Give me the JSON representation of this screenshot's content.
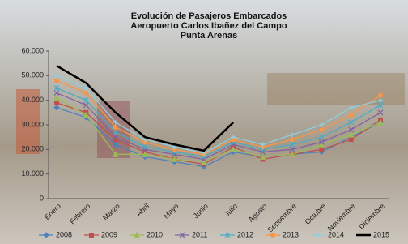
{
  "chart_data": {
    "type": "line",
    "title_lines": [
      "Evolución de Pasajeros Embarcados",
      "Aeropuerto Carlos Ibañez del Campo",
      "Punta Arenas"
    ],
    "categories": [
      "Enero",
      "Febrero",
      "Marzo",
      "Abril",
      "Mayo",
      "Junio",
      "Julio",
      "Agosto",
      "Septiembre",
      "Octubre",
      "Noviembre",
      "Diciembre"
    ],
    "series": [
      {
        "name": "2008",
        "color": "#4f81bd",
        "marker": "diamond",
        "values": [
          37000,
          33000,
          22000,
          17000,
          15000,
          13000,
          19000,
          17000,
          18000,
          19000,
          25000,
          31000
        ]
      },
      {
        "name": "2009",
        "color": "#c0504d",
        "marker": "square",
        "values": [
          39000,
          35000,
          24000,
          19000,
          16000,
          14000,
          21000,
          16000,
          18000,
          20000,
          24000,
          32000
        ]
      },
      {
        "name": "2010",
        "color": "#9bbb59",
        "marker": "triangle",
        "values": [
          41000,
          34000,
          18000,
          18000,
          16000,
          15000,
          20000,
          17000,
          18000,
          22000,
          26000,
          31000
        ]
      },
      {
        "name": "2011",
        "color": "#8064a2",
        "marker": "x",
        "values": [
          43000,
          38000,
          25000,
          20000,
          18000,
          16000,
          22000,
          19000,
          20000,
          23000,
          28000,
          35000
        ]
      },
      {
        "name": "2012",
        "color": "#4bacc6",
        "marker": "star",
        "values": [
          45000,
          40000,
          27000,
          21000,
          19000,
          17000,
          23000,
          20000,
          22000,
          25000,
          31000,
          38000
        ]
      },
      {
        "name": "2013",
        "color": "#f79646",
        "marker": "circle",
        "values": [
          48000,
          43000,
          29000,
          23000,
          20000,
          18000,
          24000,
          21000,
          24000,
          28000,
          34000,
          42000
        ]
      },
      {
        "name": "2014",
        "color": "#92cddc",
        "marker": "plus",
        "values": [
          50000,
          45000,
          31000,
          24000,
          21000,
          18500,
          25000,
          22000,
          26000,
          30000,
          37000,
          40000
        ]
      },
      {
        "name": "2015",
        "color": "#000000",
        "marker": "none",
        "values": [
          54000,
          47000,
          35000,
          25000,
          22000,
          19500,
          31000,
          null,
          null,
          null,
          null,
          null
        ]
      }
    ],
    "ylim": [
      0,
      60000
    ],
    "yticks": [
      0,
      {
        "value": 10000,
        "label": "10.000"
      },
      {
        "value": 20000,
        "label": "20.000"
      },
      {
        "value": 30000,
        "label": "30.000"
      },
      {
        "value": 40000,
        "label": "40.000"
      },
      {
        "value": 50000,
        "label": "50.000"
      },
      {
        "value": 60000,
        "label": "60.000"
      }
    ],
    "grid": false
  }
}
